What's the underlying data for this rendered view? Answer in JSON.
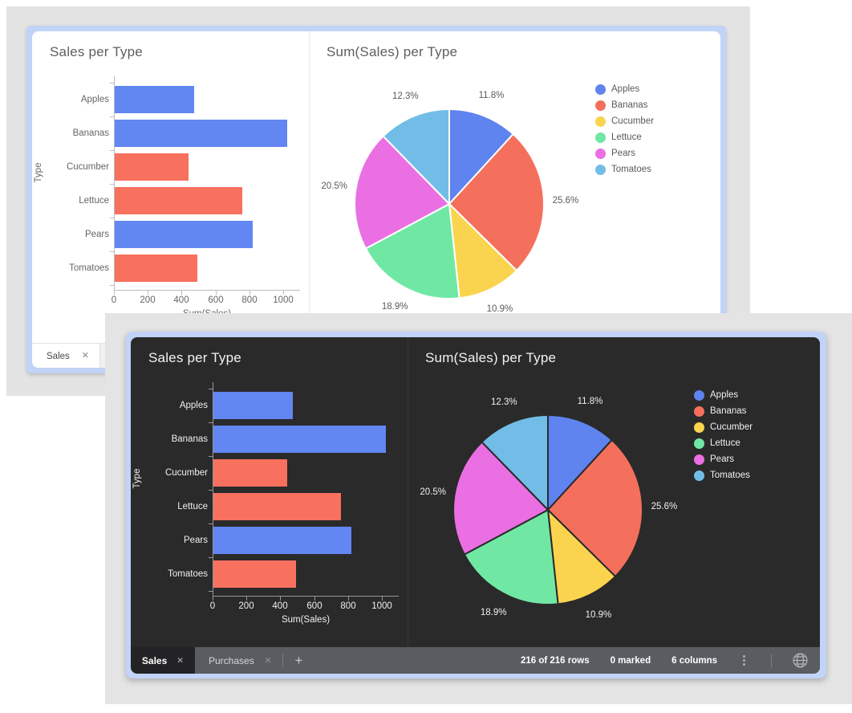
{
  "back_window": {
    "theme": "light",
    "bar_title": "Sales per Type",
    "pie_title": "Sum(Sales) per Type",
    "tab_label": "Sales",
    "close_glyph": "✕"
  },
  "front_window": {
    "theme": "dark",
    "bar_title": "Sales per Type",
    "pie_title": "Sum(Sales) per Type",
    "tabs": [
      {
        "label": "Sales",
        "active": true,
        "close_glyph": "✕"
      },
      {
        "label": "Purchases",
        "active": false,
        "close_glyph": "✕"
      }
    ],
    "new_tab_glyph": "+",
    "status": {
      "rows": "216 of 216 rows",
      "marked": "0 marked",
      "columns": "6 columns"
    },
    "icons": [
      "more-options-icon",
      "globe-icon"
    ]
  },
  "chart_data": [
    {
      "type": "bar",
      "orientation": "horizontal",
      "title": "Sales per Type",
      "categories": [
        "Apples",
        "Bananas",
        "Cucumber",
        "Lettuce",
        "Pears",
        "Tomatoes"
      ],
      "values": [
        470,
        1020,
        434,
        753,
        817,
        490
      ],
      "bar_colors": [
        "#6286F2",
        "#6286F2",
        "#F8705E",
        "#F8705E",
        "#6286F2",
        "#F8705E"
      ],
      "xlabel": "Sum(Sales)",
      "ylabel": "Type",
      "xlim": [
        0,
        1100
      ],
      "xticks": [
        "0",
        "200",
        "400",
        "600",
        "800",
        "1000"
      ],
      "grid": false
    },
    {
      "type": "pie",
      "title": "Sum(Sales) per Type",
      "categories": [
        "Apples",
        "Bananas",
        "Cucumber",
        "Lettuce",
        "Pears",
        "Tomatoes"
      ],
      "percent": [
        11.8,
        25.6,
        10.9,
        18.9,
        20.5,
        12.3
      ],
      "labels": [
        "11.8%",
        "25.6%",
        "10.9%",
        "18.9%",
        "20.5%",
        "12.3%"
      ],
      "colors": [
        "#5F83EF",
        "#F4705C",
        "#FBD44F",
        "#70E8A4",
        "#EA6FE2",
        "#72BDE8"
      ],
      "legend_position": "right",
      "start_angle_deg": 0,
      "direction": "clockwise"
    }
  ],
  "colors": {
    "window_border_blue": "#C1D3F7",
    "backdrop_gray": "#E3E3E3",
    "dark_canvas": "#2A2A2B",
    "light_canvas": "#FFFFFF",
    "statusbar_gray": "#595D62",
    "active_tab_dark": "#232325",
    "series_blue": "#6286F2",
    "series_salmon": "#F8705E",
    "pie_stroke_dark": "#2A2A2B",
    "pie_stroke_light": "#FFFFFF"
  }
}
